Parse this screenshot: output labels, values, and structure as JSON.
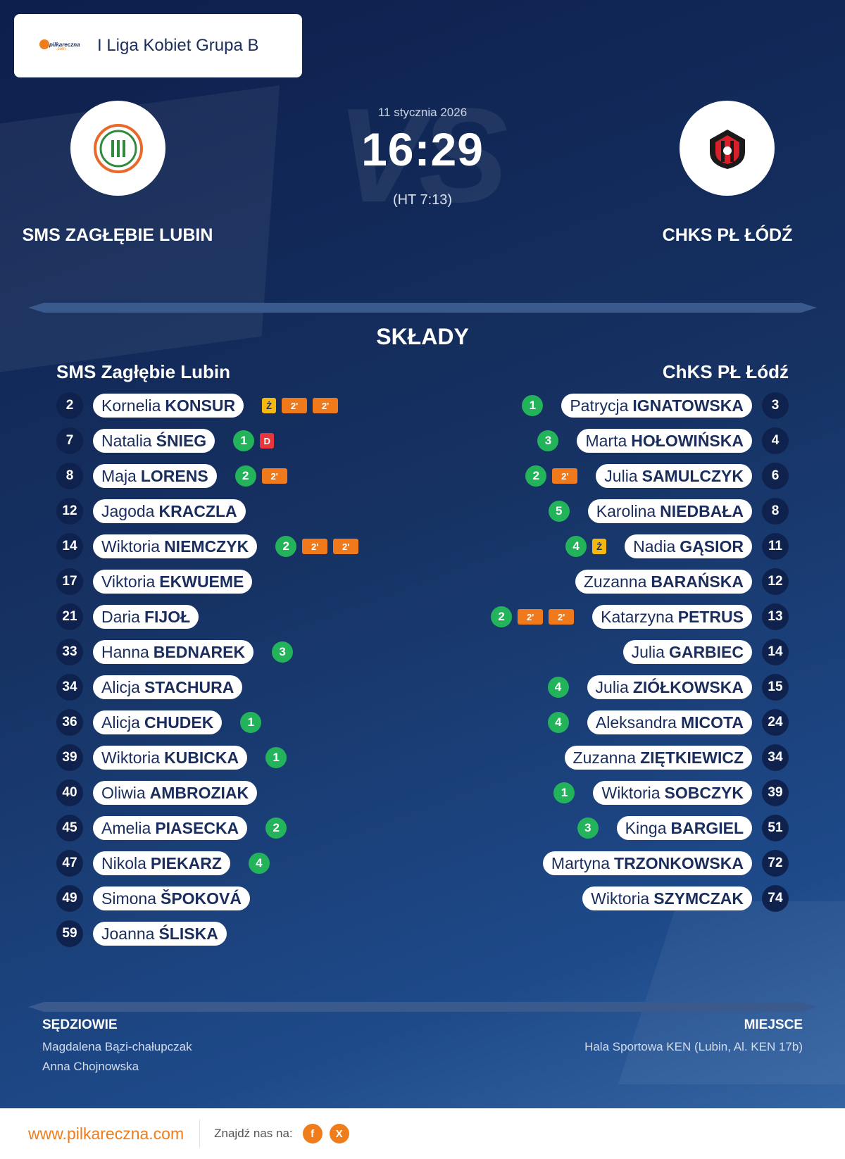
{
  "league": {
    "name": "I Liga Kobiet Grupa B",
    "logo_text": "pilkareczna",
    "logo_sub": ".com"
  },
  "match": {
    "date": "11 stycznia 2026",
    "score": "16:29",
    "halftime": "(HT 7:13)",
    "vs": "VS"
  },
  "home": {
    "name": "SMS ZAGŁĘBIE LUBIN",
    "lineup_title": "SMS Zagłębie Lubin",
    "crest_color": "#e8692a"
  },
  "away": {
    "name": "CHKS PŁ ŁÓDŹ",
    "lineup_title": "ChKS PŁ Łódź",
    "crest_color": "#d8202a"
  },
  "section_title": "SKŁADY",
  "home_players": [
    {
      "num": "2",
      "first": "Kornelia",
      "last": "KONSUR",
      "events": [
        {
          "t": "yellow",
          "v": "Ż"
        },
        {
          "t": "two",
          "v": "2'"
        },
        {
          "t": "two",
          "v": "2'"
        }
      ]
    },
    {
      "num": "7",
      "first": "Natalia",
      "last": "ŚNIEG",
      "events": [
        {
          "t": "goal",
          "v": "1"
        },
        {
          "t": "red",
          "v": "D"
        }
      ]
    },
    {
      "num": "8",
      "first": "Maja",
      "last": "LORENS",
      "events": [
        {
          "t": "goal",
          "v": "2"
        },
        {
          "t": "two",
          "v": "2'"
        }
      ]
    },
    {
      "num": "12",
      "first": "Jagoda",
      "last": "KRACZLA",
      "events": []
    },
    {
      "num": "14",
      "first": "Wiktoria",
      "last": "NIEMCZYK",
      "events": [
        {
          "t": "goal",
          "v": "2"
        },
        {
          "t": "two",
          "v": "2'"
        },
        {
          "t": "two",
          "v": "2'"
        }
      ]
    },
    {
      "num": "17",
      "first": "Viktoria",
      "last": "EKWUEME",
      "events": []
    },
    {
      "num": "21",
      "first": "Daria",
      "last": "FIJOŁ",
      "events": []
    },
    {
      "num": "33",
      "first": "Hanna",
      "last": "BEDNAREK",
      "events": [
        {
          "t": "goal",
          "v": "3"
        }
      ]
    },
    {
      "num": "34",
      "first": "Alicja",
      "last": "STACHURA",
      "events": []
    },
    {
      "num": "36",
      "first": "Alicja",
      "last": "CHUDEK",
      "events": [
        {
          "t": "goal",
          "v": "1"
        }
      ]
    },
    {
      "num": "39",
      "first": "Wiktoria",
      "last": "KUBICKA",
      "events": [
        {
          "t": "goal",
          "v": "1"
        }
      ]
    },
    {
      "num": "40",
      "first": "Oliwia",
      "last": "AMBROZIAK",
      "events": []
    },
    {
      "num": "45",
      "first": "Amelia",
      "last": "PIASECKA",
      "events": [
        {
          "t": "goal",
          "v": "2"
        }
      ]
    },
    {
      "num": "47",
      "first": "Nikola",
      "last": "PIEKARZ",
      "events": [
        {
          "t": "goal",
          "v": "4"
        }
      ]
    },
    {
      "num": "49",
      "first": "Simona",
      "last": "ŠPOKOVÁ",
      "events": []
    },
    {
      "num": "59",
      "first": "Joanna",
      "last": "ŚLISKA",
      "events": []
    }
  ],
  "away_players": [
    {
      "num": "3",
      "first": "Patrycja",
      "last": "IGNATOWSKA",
      "events": [
        {
          "t": "goal",
          "v": "1"
        }
      ]
    },
    {
      "num": "4",
      "first": "Marta",
      "last": "HOŁOWIŃSKA",
      "events": [
        {
          "t": "goal",
          "v": "3"
        }
      ]
    },
    {
      "num": "6",
      "first": "Julia",
      "last": "SAMULCZYK",
      "events": [
        {
          "t": "two",
          "v": "2'"
        },
        {
          "t": "goal",
          "v": "2"
        }
      ]
    },
    {
      "num": "8",
      "first": "Karolina",
      "last": "NIEDBAŁA",
      "events": [
        {
          "t": "goal",
          "v": "5"
        }
      ]
    },
    {
      "num": "11",
      "first": "Nadia",
      "last": "GĄSIOR",
      "events": [
        {
          "t": "yellow",
          "v": "Ż"
        },
        {
          "t": "goal",
          "v": "4"
        }
      ]
    },
    {
      "num": "12",
      "first": "Zuzanna",
      "last": "BARAŃSKA",
      "events": []
    },
    {
      "num": "13",
      "first": "Katarzyna",
      "last": "PETRUS",
      "events": [
        {
          "t": "two",
          "v": "2'"
        },
        {
          "t": "two",
          "v": "2'"
        },
        {
          "t": "goal",
          "v": "2"
        }
      ]
    },
    {
      "num": "14",
      "first": "Julia",
      "last": "GARBIEC",
      "events": []
    },
    {
      "num": "15",
      "first": "Julia",
      "last": "ZIÓŁKOWSKA",
      "events": [
        {
          "t": "goal",
          "v": "4"
        }
      ]
    },
    {
      "num": "24",
      "first": "Aleksandra",
      "last": "MICOTA",
      "events": [
        {
          "t": "goal",
          "v": "4"
        }
      ]
    },
    {
      "num": "34",
      "first": "Zuzanna",
      "last": "ZIĘTKIEWICZ",
      "events": []
    },
    {
      "num": "39",
      "first": "Wiktoria",
      "last": "SOBCZYK",
      "events": [
        {
          "t": "goal",
          "v": "1"
        }
      ]
    },
    {
      "num": "51",
      "first": "Kinga",
      "last": "BARGIEL",
      "events": [
        {
          "t": "goal",
          "v": "3"
        }
      ]
    },
    {
      "num": "72",
      "first": "Martyna",
      "last": "TRZONKOWSKA",
      "events": []
    },
    {
      "num": "74",
      "first": "Wiktoria",
      "last": "SZYMCZAK",
      "events": []
    }
  ],
  "referees": {
    "title": "SĘDZIOWIE",
    "names": [
      "Magdalena Bązi-chałupczak",
      "Anna Chojnowska"
    ]
  },
  "venue": {
    "title": "MIEJSCE",
    "name": "Hala Sportowa KEN (Lubin, Al. KEN 17b)"
  },
  "footer": {
    "site": "www.pilkareczna.com",
    "find_us": "Znajdź nas na:",
    "facebook": "f",
    "x": "X"
  }
}
